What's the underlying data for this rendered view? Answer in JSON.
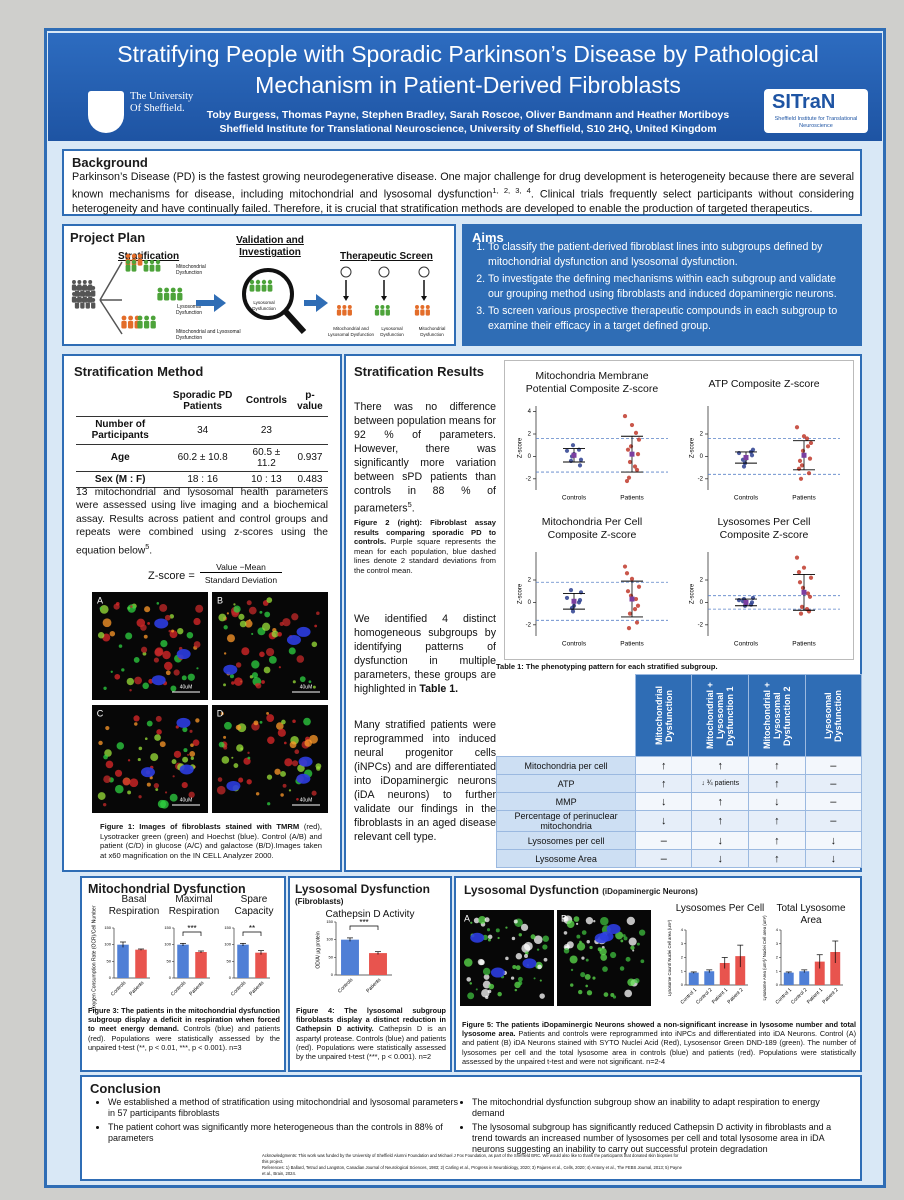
{
  "header": {
    "title": "Stratifying People with Sporadic Parkinson’s Disease by Pathological Mechanism in Patient-Derived Fibroblasts",
    "university": "The University Of Sheffield.",
    "authors": "Toby Burgess, Thomas Payne, Stephen Bradley, Sarah Roscoe, Oliver Bandmann and Heather Mortiboys",
    "affiliation": "Sheffield Institute for Translational Neuroscience, University of Sheffield, S10 2HQ, United Kingdom",
    "institute_logo": "SITraN",
    "institute_name": "Sheffield Institute for Translational Neuroscience"
  },
  "background": {
    "title": "Background",
    "text_before": "Parkinson’s Disease (PD) is the fastest growing neurodegenerative disease. One major challenge for drug development is heterogeneity because there are several known mechanisms for disease, including mitochondrial and lysosomal dysfunction",
    "refs": "1, 2, 3, 4",
    "text_after": ". Clinical trials frequently select participants without considering heterogeneity and have continually failed. Therefore, it is crucial that stratification methods are developed to enable the production of targeted therapeutics."
  },
  "project_plan": {
    "title": "Project Plan",
    "stages": [
      "Stratification",
      "Validation and Investigation",
      "Therapeutic Screen"
    ],
    "strat_groups": [
      "Mitochondrial Dysfunction",
      "Lysosomal Dysfunction",
      "Mitochondrial and Lysosomal Dysfunction"
    ],
    "validation_label": "Lysosomal Dysfunction",
    "screen_groups": [
      "Mitochondrial and Lysosomal Dysfunction",
      "Lysosomal Dysfunction",
      "Mitochondrial Dysfunction"
    ]
  },
  "aims": {
    "title": "Aims",
    "items": [
      "To classify the patient-derived fibroblast lines into subgroups defined by mitochondrial dysfunction and lysosomal dysfunction.",
      "To investigate the defining mechanisms within each subgroup and validate our grouping method using fibroblasts and induced dopaminergic neurons.",
      "To screen various prospective therapeutic compounds in each subgroup to examine their efficacy in a target defined group."
    ]
  },
  "stratification_method": {
    "title": "Stratification Method",
    "table": {
      "header": [
        "Sporadic PD Patients",
        "Controls",
        "p-value"
      ],
      "rows": [
        [
          "Number of Participants",
          "34",
          "23"
        ],
        [
          "Age",
          "60.2 ± 10.8",
          "60.5 ± 11.2",
          "0.937"
        ],
        [
          "Sex (M : F)",
          "18 : 16",
          "10 : 13",
          "0.483"
        ]
      ]
    },
    "text": "13 mitochondrial and lysosomal health parameters were assessed using live imaging and a biochemical assay. Results across patient and control groups and repeats were combined using z-scores using the equation below",
    "text_ref": "5",
    "text_end": ".",
    "equation": {
      "lhs": "Z-score =",
      "numerator": "Value −Mean",
      "denominator": "Standard Deviation"
    },
    "panels": [
      "A",
      "B",
      "C",
      "D"
    ],
    "scale_bar": "40uM",
    "caption_label": "Figure 1: Images of fibroblasts stained with TMRM",
    "caption": " (red), Lysotracker green (green) and Hoechst (blue). Control (A/B) and patient (C/D) in glucose (A/C) and galactose (B/D).Images taken at x60 magnification on the IN CELL Analyzer 2000."
  },
  "stratification_results": {
    "title": "Stratification Results",
    "p1": "There was no difference between population means for 92 % of parameters. However, there was significantly more variation between sPD patients than controls in 88 % of parameters",
    "p1_ref": "5",
    "p1_end": ".",
    "figure2_label": "Figure 2 (right): Fibroblast assay results comparing sporadic PD to controls.",
    "figure2_caption": " Purple square represents the mean for each population, blue dashed lines denote 2 standard deviations from the control mean.",
    "p2": "We identified 4 distinct homogeneous subgroups by identifying patterns of dysfunction in multiple parameters, these groups are highlighted in ",
    "p2_bold": "Table 1.",
    "p3": "Many stratified patients were reprogrammed into induced neural progenitor cells (iNPCs) and are differentiated into iDopaminergic neurons (iDA neurons) to further validate our findings in the fibroblasts in an aged disease relevant cell type.",
    "plots": [
      {
        "title": "Mitochondria Membrane Potential Composite Z-score",
        "ylabel": "Z-score",
        "ylim": [
          -3,
          4.5
        ],
        "yticks": [
          -2,
          0,
          2,
          4
        ],
        "categories": [
          "Controls",
          "Patients"
        ],
        "controls": [
          0.5,
          0.2,
          -0.3,
          1.0,
          -0.8,
          0.0,
          0.6,
          -0.4
        ],
        "patients": [
          3.6,
          2.8,
          1.5,
          0.9,
          0.2,
          -0.5,
          -1.2,
          -1.9,
          2.1,
          0.6,
          -0.9,
          -2.2
        ],
        "means": [
          0.1,
          0.2
        ],
        "sd": [
          0.6,
          1.6
        ],
        "sd_lines": [
          -1.4,
          1.6
        ]
      },
      {
        "title": "ATP Composite Z-score",
        "ylabel": "Z-score",
        "ylim": [
          -3,
          4.5
        ],
        "yticks": [
          -2,
          0,
          2
        ],
        "categories": [
          "Controls",
          "Patients"
        ],
        "controls": [
          0.3,
          -0.2,
          0.6,
          -0.6,
          0.1,
          -0.9,
          0.4,
          -0.3
        ],
        "patients": [
          2.6,
          1.8,
          1.2,
          0.5,
          -0.2,
          -0.8,
          -1.5,
          -2.0,
          0.9,
          -0.4,
          1.6,
          -1.1
        ],
        "means": [
          -0.1,
          0.1
        ],
        "sd": [
          0.5,
          1.3
        ],
        "sd_lines": [
          -1.6,
          1.6
        ]
      },
      {
        "title": "Mitochondria Per Cell Composite Z-score",
        "ylabel": "Z-score",
        "ylim": [
          -3,
          4.5
        ],
        "yticks": [
          -2,
          0,
          2
        ],
        "categories": [
          "Controls",
          "Patients"
        ],
        "controls": [
          0.4,
          -0.3,
          0.9,
          -0.8,
          0.2,
          -0.5,
          0.0,
          1.1
        ],
        "patients": [
          3.2,
          2.1,
          1.4,
          0.6,
          -0.3,
          -1.0,
          -1.8,
          -2.3,
          0.3,
          1.0,
          -0.6,
          2.6
        ],
        "means": [
          0.1,
          0.3
        ],
        "sd": [
          0.7,
          1.6
        ],
        "sd_lines": [
          -1.6,
          1.8
        ]
      },
      {
        "title": "Lysosomes Per Cell Composite Z-score",
        "ylabel": "Z-score",
        "ylim": [
          -3,
          4.5
        ],
        "yticks": [
          -2,
          0,
          2
        ],
        "categories": [
          "Controls",
          "Patients"
        ],
        "controls": [
          0.2,
          -0.1,
          0.4,
          -0.3,
          0.0,
          0.3,
          -0.2,
          0.1
        ],
        "patients": [
          4.0,
          3.1,
          2.2,
          1.3,
          0.5,
          -0.4,
          -0.8,
          -1.0,
          0.8,
          1.8,
          -0.6,
          2.7
        ],
        "means": [
          0.0,
          0.9
        ],
        "sd": [
          0.3,
          1.6
        ],
        "sd_lines": [
          -0.6,
          0.6
        ]
      }
    ],
    "table1": {
      "caption": "Table 1: The phenotyping pattern for each stratified subgroup.",
      "columns": [
        "Mitochondrial Dysfunction",
        "Mitochondrial + Lysosomal Dysfunction 1",
        "Mitochondrial + Lysosomal Dysfunction 2",
        "Lysosomal Dysfunction"
      ],
      "rows": [
        {
          "label": "Mitochondria per cell",
          "cells": [
            "↑",
            "↑",
            "↑",
            "–"
          ]
        },
        {
          "label": "ATP",
          "cells": [
            "↑",
            "↓ ¾ patients",
            "↑",
            "–"
          ]
        },
        {
          "label": "MMP",
          "cells": [
            "↓",
            "↑",
            "↓",
            "–"
          ]
        },
        {
          "label": "Percentage of perinuclear mitochondria",
          "cells": [
            "↓",
            "↑",
            "↑",
            "–"
          ]
        },
        {
          "label": "Lysosomes per cell",
          "cells": [
            "–",
            "↓",
            "↑",
            "↓"
          ]
        },
        {
          "label": "Lysosome Area",
          "cells": [
            "–",
            "↓",
            "↑",
            "↓"
          ]
        }
      ]
    }
  },
  "mito": {
    "title": "Mitochondrial Dysfunction",
    "ylabel": "Oxygen Consumption Rate (OCR)/Cell Number",
    "categories": [
      "Controls",
      "Patients"
    ],
    "colors": [
      "#4f7fd6",
      "#e8544e"
    ],
    "ylim": [
      0,
      150
    ],
    "yticks": [
      0,
      50,
      100,
      150
    ],
    "panels": [
      {
        "subtitle": "Basal Respiration",
        "values": [
          100,
          85
        ],
        "errors": [
          8,
          2
        ]
      },
      {
        "subtitle": "Maximal Respiration",
        "values": [
          100,
          78
        ],
        "errors": [
          4,
          3
        ],
        "sig": "***"
      },
      {
        "subtitle": "Spare Capacity",
        "values": [
          100,
          76
        ],
        "errors": [
          4,
          6
        ],
        "sig": "**"
      }
    ],
    "caption_label": "Figure 3: The patients in the mitochondrial dysfunction subgroup display a deficit in respiration when forced to meet energy demand.",
    "caption": " Controls (blue) and patients (red). Populations were statistically assessed by the unpaired t-test (**, p < 0.01, ***, p < 0.001). n=3"
  },
  "lyso": {
    "title": "Lysosomal Dysfunction",
    "subtitle": "(Fibroblasts)",
    "chart_title": "Cathepsin D Activity",
    "ylabel": "OD/A/ µg protein",
    "categories": [
      "Controls",
      "Patients"
    ],
    "colors": [
      "#4f7fd6",
      "#e8544e"
    ],
    "ylim": [
      0,
      150
    ],
    "yticks": [
      0,
      50,
      100,
      150
    ],
    "values": [
      100,
      62
    ],
    "errors": [
      5,
      4
    ],
    "sig": "***",
    "caption_label": "Figure 4: The lysosomal subgroup fibroblasts display a distinct reduction in Cathepsin D activity.",
    "caption": " Cathepsin D is an aspartyl protease. Controls (blue) and patients (red). Populations were statistically assessed by the unpaired t-test (***, p < 0.001). n=2"
  },
  "ida": {
    "title": "Lysosomal Dysfunction",
    "subtitle": "(iDopaminergic Neurons)",
    "panels": [
      "A",
      "B"
    ],
    "categories": [
      "Control 1",
      "Control 2",
      "Patient 1",
      "Patient 2"
    ],
    "colors": [
      "#4f7fd6",
      "#4f7fd6",
      "#e8544e",
      "#e8544e"
    ],
    "ylim": [
      0,
      4
    ],
    "yticks": [
      0,
      1,
      2,
      3,
      4
    ],
    "charts": [
      {
        "title": "Lysosomes Per Cell",
        "ylabel": "Lysosome Count/ Nuclei Cell area (um²)",
        "values": [
          0.9,
          1.0,
          1.6,
          2.1
        ],
        "errors": [
          0.05,
          0.1,
          0.4,
          0.8
        ]
      },
      {
        "title": "Total Lysosome Area",
        "ylabel": "Lysosome Area (um²)/ Nuclei Cell area (um²)",
        "values": [
          0.9,
          1.0,
          1.7,
          2.4
        ],
        "errors": [
          0.05,
          0.1,
          0.5,
          0.8
        ]
      }
    ],
    "caption_label": "Figure 5: The patients iDopaminergic Neurons showed a non-significant increase in lysosome number and total lysosome area.",
    "caption": " Patients and controls were reprogrammed into iNPCs and differentiated into iDA Neurons. Control (A) and patient (B) iDA Neurons stained with SYTO Nuclei Acid (Red), Lysosensor Green DND-189 (green). The number of lysosomes per cell and the total lysosome area in controls (blue) and patients (red). Populations were statistically assessed by the unpaired t-test and were not significant. n=2-4"
  },
  "conclusion": {
    "title": "Conclusion",
    "items": [
      "We established a method of stratification using mitochondrial and lysosomal parameters in 57 participants fibroblasts",
      "The patient cohort was significantly more heterogeneous than the controls in 88% of parameters",
      "The mitochondrial dysfunction subgroup show an inability to adapt respiration to energy demand",
      "The lysosomal subgroup has significantly reduced Cathepsin D activity in fibroblasts and a trend towards an increased number of lysosomes per cell and total lysosome area in iDA neurons suggesting an inability to carry out successful protein degradation"
    ],
    "acknowledgments": "Acknowledgments: This work was funded by the University of Sheffield Alumni Foundation and Michael J Fox Foundation, as part of the Sheffield BRC. We would also like to thank the participants that donated skin biopsies for this project.",
    "references": "References: 1) Ballard, Tetrud and Langston, Canadian Journal of Neurological Sciences, 1983; 2) Carling et al., Progress in Neurobiology, 2020; 3) Pajares et al., Cells, 2020; 4) Antony et al., The FEBS Journal, 2013; 5) Payne et al., Brain, 2024."
  }
}
